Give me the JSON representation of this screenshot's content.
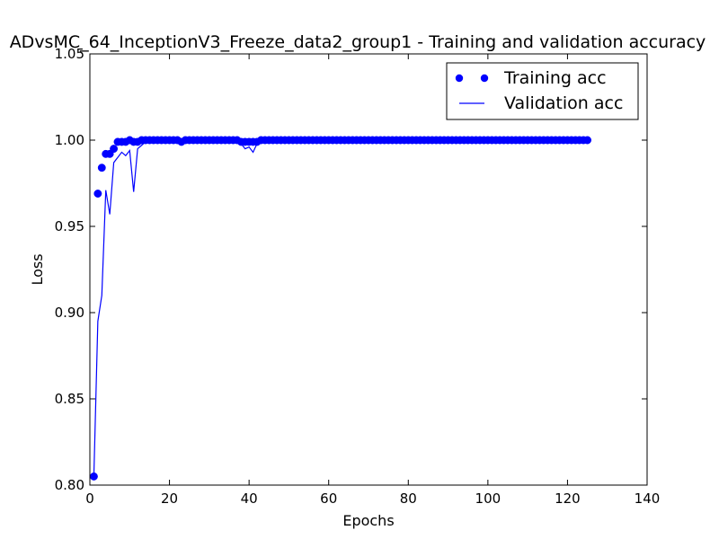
{
  "chart_data": {
    "type": "line",
    "title": "ADvsMC_64_InceptionV3_Freeze_data2_group1 - Training and validation accuracy",
    "xlabel": "Epochs",
    "ylabel": "Loss",
    "xlim": [
      0,
      140
    ],
    "ylim": [
      0.8,
      1.05
    ],
    "xticks": [
      0,
      20,
      40,
      60,
      80,
      100,
      120,
      140
    ],
    "xtick_labels": [
      "0",
      "20",
      "40",
      "60",
      "80",
      "100",
      "120",
      "140"
    ],
    "yticks": [
      0.8,
      0.85,
      0.9,
      0.95,
      1.0,
      1.05
    ],
    "ytick_labels": [
      "0.80",
      "0.85",
      "0.90",
      "0.95",
      "1.00",
      "1.05"
    ],
    "legend_position": "top-right",
    "colors": {
      "series": "#0000ff",
      "axis": "#000000"
    },
    "series": [
      {
        "name": "Training acc",
        "style": "markers",
        "x_start": 1,
        "values": [
          0.805,
          0.969,
          0.984,
          0.992,
          0.992,
          0.995,
          0.999,
          0.999,
          0.999,
          1.0,
          0.999,
          0.999,
          1.0,
          1.0,
          1.0,
          1.0,
          1.0,
          1.0,
          1.0,
          1.0,
          1.0,
          1.0,
          0.999,
          1.0,
          1.0,
          1.0,
          1.0,
          1.0,
          1.0,
          1.0,
          1.0,
          1.0,
          1.0,
          1.0,
          1.0,
          1.0,
          1.0,
          0.999,
          0.999,
          0.999,
          0.999,
          0.999,
          1.0,
          1.0,
          1.0,
          1.0,
          1.0,
          1.0,
          1.0,
          1.0,
          1.0,
          1.0,
          1.0,
          1.0,
          1.0,
          1.0,
          1.0,
          1.0,
          1.0,
          1.0,
          1.0,
          1.0,
          1.0,
          1.0,
          1.0,
          1.0,
          1.0,
          1.0,
          1.0,
          1.0,
          1.0,
          1.0,
          1.0,
          1.0,
          1.0,
          1.0,
          1.0,
          1.0,
          1.0,
          1.0,
          1.0,
          1.0,
          1.0,
          1.0,
          1.0,
          1.0,
          1.0,
          1.0,
          1.0,
          1.0,
          1.0,
          1.0,
          1.0,
          1.0,
          1.0,
          1.0,
          1.0,
          1.0,
          1.0,
          1.0,
          1.0,
          1.0,
          1.0,
          1.0,
          1.0,
          1.0,
          1.0,
          1.0,
          1.0,
          1.0,
          1.0,
          1.0,
          1.0,
          1.0,
          1.0,
          1.0,
          1.0,
          1.0,
          1.0,
          1.0,
          1.0,
          1.0,
          1.0,
          1.0,
          1.0
        ]
      },
      {
        "name": "Validation acc",
        "style": "line",
        "x_start": 1,
        "values": [
          0.805,
          0.895,
          0.91,
          0.971,
          0.957,
          0.987,
          0.99,
          0.993,
          0.991,
          0.994,
          0.97,
          0.995,
          0.997,
          0.999,
          1.0,
          1.0,
          1.0,
          1.0,
          1.0,
          1.0,
          1.0,
          1.0,
          0.999,
          1.0,
          1.0,
          1.0,
          1.0,
          1.0,
          1.0,
          1.0,
          1.0,
          1.0,
          1.0,
          1.0,
          1.0,
          1.0,
          1.0,
          0.998,
          0.995,
          0.996,
          0.993,
          0.998,
          0.999,
          1.0,
          1.0,
          1.0,
          1.0,
          1.0,
          1.0,
          1.0,
          1.0,
          1.0,
          1.0,
          1.0,
          1.0,
          1.0,
          1.0,
          1.0,
          1.0,
          1.0,
          1.0,
          1.0,
          1.0,
          1.0,
          1.0,
          1.0,
          1.0,
          1.0,
          1.0,
          1.0,
          1.0,
          1.0,
          1.0,
          1.0,
          1.0,
          1.0,
          1.0,
          1.0,
          1.0,
          1.0,
          1.0,
          1.0,
          1.0,
          1.0,
          1.0,
          1.0,
          1.0,
          1.0,
          1.0,
          1.0,
          1.0,
          1.0,
          1.0,
          1.0,
          1.0,
          1.0,
          1.0,
          1.0,
          1.0,
          1.0,
          1.0,
          1.0,
          1.0,
          1.0,
          1.0,
          1.0,
          1.0,
          1.0,
          1.0,
          1.0,
          1.0,
          1.0,
          1.0,
          1.0,
          1.0,
          1.0,
          1.0,
          1.0,
          1.0,
          1.0,
          1.0,
          1.0,
          1.0,
          1.0,
          1.0
        ]
      }
    ]
  }
}
